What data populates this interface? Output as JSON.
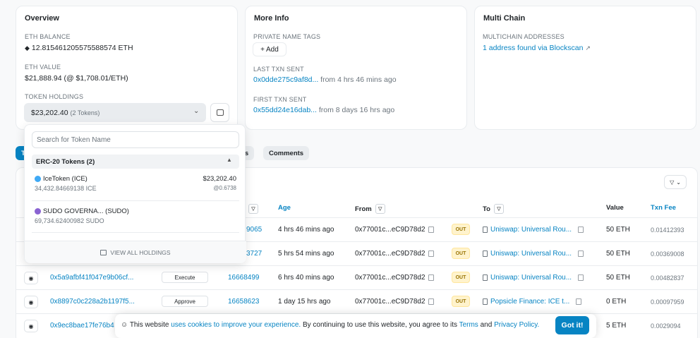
{
  "overview": {
    "title": "Overview",
    "eth_balance_label": "ETH BALANCE",
    "eth_balance": "12.815461205575588574 ETH",
    "eth_value_label": "ETH VALUE",
    "eth_value": "$21,888.94 (@ $1,708.01/ETH)",
    "token_holdings_label": "TOKEN HOLDINGS",
    "token_holdings_value": "$23,202.40",
    "token_holdings_count": "(2 Tokens)"
  },
  "more_info": {
    "title": "More Info",
    "private_tags_label": "PRIVATE NAME TAGS",
    "add_label": "Add",
    "last_txn_label": "LAST TXN SENT",
    "last_txn_hash": "0x0dde275c9af8d...",
    "last_txn_time": "from 4 hrs 46 mins ago",
    "first_txn_label": "FIRST TXN SENT",
    "first_txn_hash": "0x55dd24e16dab...",
    "first_txn_time": "from 8 days 16 hrs ago"
  },
  "multi_chain": {
    "title": "Multi Chain",
    "addresses_label": "MULTICHAIN ADDRESSES",
    "addresses_link": "1 address found via Blockscan"
  },
  "tabs": [
    {
      "label": "T"
    },
    {
      "label": "ics"
    },
    {
      "label": "Comments"
    }
  ],
  "dropdown": {
    "search_placeholder": "Search for Token Name",
    "section_label": "ERC-20 Tokens (2)",
    "tokens": [
      {
        "name": "IceToken (ICE)",
        "amount": "34,432.84669138 ICE",
        "value": "$23,202.40",
        "price": "@0.6738",
        "icon_color": "#3fa9f5"
      },
      {
        "name": "SUDO GOVERNA... (SUDO)",
        "amount": "69,734.62400982 SUDO",
        "value": "",
        "price": "",
        "icon_color": "#8a63d2"
      }
    ],
    "view_all_label": "VIEW ALL HOLDINGS"
  },
  "table": {
    "headers": {
      "age": "Age",
      "from": "From",
      "to": "To",
      "value": "Value",
      "fee": "Txn Fee"
    },
    "rows": [
      {
        "hash": "",
        "method": "",
        "block": "9065",
        "age": "4 hrs 46 mins ago",
        "from": "0x77001c...eC9D78d2",
        "dir": "OUT",
        "to": "Uniswap: Universal Rou...",
        "value": "50 ETH",
        "fee": "0.01412393"
      },
      {
        "hash": "",
        "method": "",
        "block": "3727",
        "age": "5 hrs 54 mins ago",
        "from": "0x77001c...eC9D78d2",
        "dir": "OUT",
        "to": "Uniswap: Universal Rou...",
        "value": "50 ETH",
        "fee": "0.00369008"
      },
      {
        "hash": "0x5a9afbf41f047e9b06cf...",
        "method": "Execute",
        "block": "16668499",
        "age": "6 hrs 40 mins ago",
        "from": "0x77001c...eC9D78d2",
        "dir": "OUT",
        "to": "Uniswap: Universal Rou...",
        "value": "50 ETH",
        "fee": "0.00482837"
      },
      {
        "hash": "0x8897c0c228a2b1197f5...",
        "method": "Approve",
        "block": "16658623",
        "age": "1 day 15 hrs ago",
        "from": "0x77001c...eC9D78d2",
        "dir": "OUT",
        "to": "Popsicle Finance: ICE t...",
        "value": "0 ETH",
        "fee": "0.00097959"
      },
      {
        "hash": "0x9ec8bae17fe76b4",
        "method": "",
        "block": "",
        "age": "",
        "from": "",
        "dir": "",
        "to": "",
        "value": "5 ETH",
        "fee": "0.0029094"
      }
    ]
  },
  "cookie": {
    "text1": "This website",
    "link1": "uses cookies to improve your experience.",
    "text2": "By continuing to use this website, you agree to its",
    "link2": "Terms",
    "text3": "and",
    "link3": "Privacy Policy.",
    "button": "Got it!"
  }
}
